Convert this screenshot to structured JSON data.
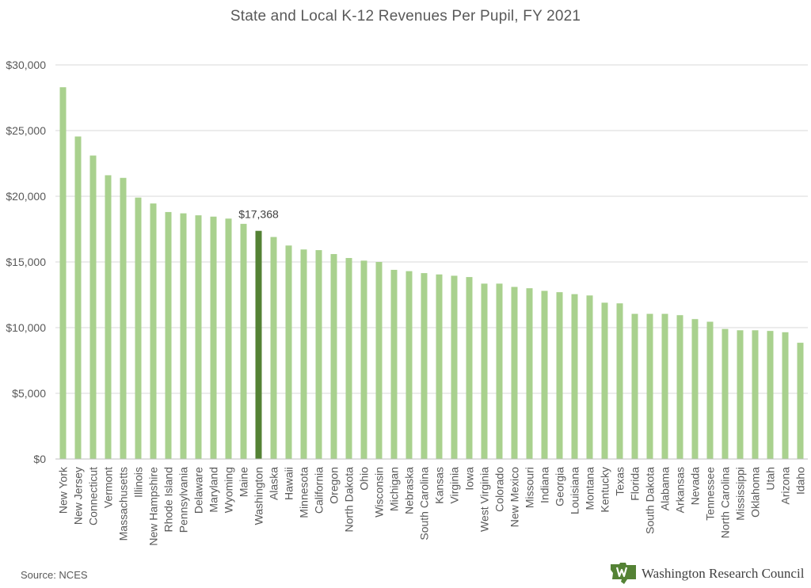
{
  "chart_data": {
    "type": "bar",
    "title": "State and Local K-12 Revenues Per Pupil, FY 2021",
    "xlabel": "",
    "ylabel": "",
    "ylim": [
      0,
      30000
    ],
    "y_ticks": [
      0,
      5000,
      10000,
      15000,
      20000,
      25000,
      30000
    ],
    "y_tick_labels": [
      "$0",
      "$5,000",
      "$10,000",
      "$15,000",
      "$20,000",
      "$25,000",
      "$30,000"
    ],
    "grid": true,
    "categories": [
      "New York",
      "New Jersey",
      "Connecticut",
      "Vermont",
      "Massachusetts",
      "Illinois",
      "New Hampshire",
      "Rhode Island",
      "Pennsylvania",
      "Delaware",
      "Maryland",
      "Wyoming",
      "Maine",
      "Washington",
      "Alaska",
      "Hawaii",
      "Minnesota",
      "California",
      "Oregon",
      "North Dakota",
      "Ohio",
      "Wisconsin",
      "Michigan",
      "Nebraska",
      "South Carolina",
      "Kansas",
      "Virginia",
      "Iowa",
      "West Virginia",
      "Colorado",
      "New Mexico",
      "Missouri",
      "Indiana",
      "Georgia",
      "Louisiana",
      "Montana",
      "Kentucky",
      "Texas",
      "Florida",
      "South Dakota",
      "Alabama",
      "Arkansas",
      "Nevada",
      "Tennessee",
      "North Carolina",
      "Mississippi",
      "Oklahoma",
      "Utah",
      "Arizona",
      "Idaho"
    ],
    "values": [
      28300,
      24550,
      23100,
      21600,
      21400,
      19900,
      19450,
      18800,
      18700,
      18550,
      18450,
      18300,
      17900,
      17368,
      16900,
      16250,
      15950,
      15900,
      15600,
      15300,
      15100,
      15000,
      14400,
      14300,
      14150,
      14050,
      13950,
      13850,
      13350,
      13350,
      13100,
      13000,
      12800,
      12700,
      12550,
      12450,
      11900,
      11850,
      11050,
      11050,
      11050,
      10950,
      10650,
      10450,
      9900,
      9800,
      9800,
      9750,
      9650,
      8850
    ],
    "highlight": {
      "category": "Washington",
      "label": "$17,368"
    },
    "colors": {
      "bar": "#a9d18e",
      "highlight": "#548235",
      "grid": "#d9d9d9",
      "text": "#595959"
    }
  },
  "footer": {
    "source": "Source: NCES",
    "logo_text": "Washington Research Council"
  }
}
